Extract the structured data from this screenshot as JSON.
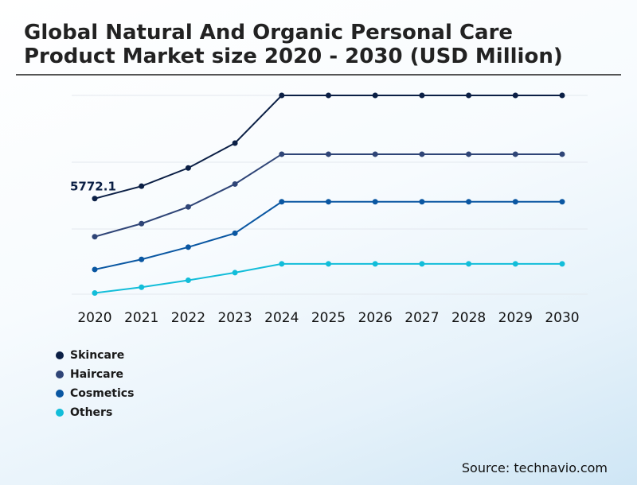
{
  "chart_data": {
    "type": "line",
    "title": "Global Natural And Organic Personal Care Product Market size 2020 - 2030 (USD Million)",
    "categories": [
      "2020",
      "2021",
      "2022",
      "2023",
      "2024",
      "2025",
      "2026",
      "2027",
      "2028",
      "2029",
      "2030"
    ],
    "ylim": [
      0,
      18000
    ],
    "grid": true,
    "annotations": [
      {
        "series": "Skincare",
        "x": "2020",
        "text": "5772.1"
      }
    ],
    "series": [
      {
        "name": "Skincare",
        "color": "#0b1f45",
        "values": [
          5772.1,
          6520,
          7620,
          9120,
          12000,
          12000,
          12000,
          12000,
          12000,
          12000,
          12000
        ]
      },
      {
        "name": "Haircare",
        "color": "#2f4577",
        "values": [
          3470,
          4260,
          5270,
          6650,
          8450,
          8450,
          8450,
          8450,
          8450,
          8450,
          8450
        ]
      },
      {
        "name": "Cosmetics",
        "color": "#0a57a2",
        "values": [
          1490,
          2100,
          2840,
          3680,
          5580,
          5580,
          5580,
          5580,
          5580,
          5580,
          5580
        ]
      },
      {
        "name": "Others",
        "color": "#12bdd9",
        "values": [
          70,
          420,
          840,
          1300,
          1830,
          1830,
          1830,
          1830,
          1830,
          1830,
          1830
        ]
      }
    ]
  },
  "source": "Source: technavio.com"
}
